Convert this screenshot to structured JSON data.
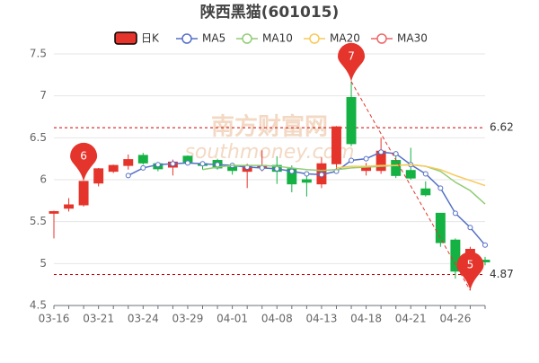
{
  "chart_data": {
    "type": "candlestick",
    "title": "陕西黑猫(601015)",
    "watermark": [
      "南方财富网",
      "southmoney.com"
    ],
    "categories": [
      "03-16",
      null,
      null,
      "03-21",
      null,
      null,
      "03-24",
      null,
      null,
      "03-29",
      null,
      null,
      "04-01",
      null,
      null,
      "04-08",
      null,
      null,
      "04-13",
      null,
      null,
      "04-18",
      null,
      null,
      "04-21",
      null,
      null,
      "04-26",
      null,
      null
    ],
    "candles": {
      "name": "日K",
      "up_color": "#e5342b",
      "down_color": "#14b143",
      "open": [
        5.6,
        5.66,
        5.7,
        5.96,
        6.1,
        6.17,
        6.29,
        6.19,
        6.15,
        6.28,
        6.19,
        6.23,
        6.15,
        6.1,
        6.15,
        6.17,
        6.13,
        6.0,
        5.95,
        6.19,
        6.98,
        6.11,
        6.11,
        6.23,
        6.11,
        5.89,
        5.6,
        5.28,
        4.92,
        5.04
      ],
      "close": [
        5.62,
        5.7,
        5.98,
        6.13,
        6.17,
        6.24,
        6.2,
        6.13,
        6.21,
        6.21,
        6.17,
        6.14,
        6.11,
        6.16,
        6.17,
        6.1,
        5.95,
        5.97,
        6.19,
        6.63,
        6.43,
        6.15,
        6.34,
        6.05,
        6.02,
        5.82,
        5.25,
        4.91,
        5.17,
        5.02
      ],
      "low": [
        5.3,
        5.62,
        5.68,
        5.92,
        6.08,
        6.12,
        6.18,
        6.1,
        6.05,
        6.2,
        6.12,
        6.12,
        6.06,
        5.9,
        6.1,
        5.95,
        5.85,
        5.8,
        5.9,
        6.1,
        6.4,
        6.05,
        6.07,
        6.02,
        6.0,
        5.8,
        5.2,
        4.82,
        4.68,
        4.98
      ],
      "high": [
        5.63,
        5.78,
        5.98,
        6.14,
        6.18,
        6.3,
        6.32,
        6.2,
        6.24,
        6.29,
        6.21,
        6.25,
        6.17,
        6.19,
        6.35,
        6.28,
        6.17,
        6.1,
        6.27,
        6.64,
        7.17,
        6.2,
        6.5,
        6.28,
        6.38,
        5.98,
        5.6,
        5.3,
        5.2,
        5.08
      ]
    },
    "series": [
      {
        "name": "MA5",
        "color": "#5470c6",
        "values": [
          null,
          null,
          null,
          null,
          null,
          6.05,
          6.14,
          6.18,
          6.19,
          6.2,
          6.19,
          6.18,
          6.17,
          6.15,
          6.14,
          6.13,
          6.1,
          6.07,
          6.06,
          6.1,
          6.23,
          6.25,
          6.33,
          6.31,
          6.18,
          6.07,
          5.9,
          5.6,
          5.43,
          5.22
        ]
      },
      {
        "name": "MA10",
        "color": "#91cc75",
        "values": [
          null,
          null,
          null,
          null,
          null,
          null,
          null,
          null,
          null,
          null,
          6.12,
          6.15,
          6.17,
          6.17,
          6.17,
          6.16,
          6.14,
          6.12,
          6.11,
          6.12,
          6.14,
          6.15,
          6.16,
          6.17,
          6.18,
          6.16,
          6.1,
          5.97,
          5.87,
          5.71
        ]
      },
      {
        "name": "MA20",
        "color": "#fac858",
        "values": [
          null,
          null,
          null,
          null,
          null,
          null,
          null,
          null,
          null,
          null,
          null,
          null,
          null,
          null,
          null,
          null,
          null,
          null,
          null,
          6.14,
          6.16,
          6.16,
          6.17,
          6.17,
          6.18,
          6.16,
          6.12,
          6.05,
          5.99,
          5.93
        ]
      },
      {
        "name": "MA30",
        "color": "#ee6666",
        "values": [
          null,
          null,
          null,
          null,
          null,
          null,
          null,
          null,
          null,
          null,
          null,
          null,
          null,
          null,
          null,
          null,
          null,
          null,
          null,
          null,
          null,
          null,
          null,
          null,
          null,
          null,
          null,
          null,
          null,
          null
        ]
      }
    ],
    "mark_points": [
      {
        "label": "6",
        "index": 2,
        "value": 5.98
      },
      {
        "label": "7",
        "index": 20,
        "value": 7.17
      },
      {
        "label": "5",
        "index": 28,
        "value": 4.68
      }
    ],
    "mark_lines": [
      6.62,
      4.87
    ],
    "ylim": [
      4.5,
      7.5
    ],
    "yticks": [
      4.5,
      5,
      5.5,
      6,
      6.5,
      7,
      7.5
    ],
    "grid": true
  }
}
